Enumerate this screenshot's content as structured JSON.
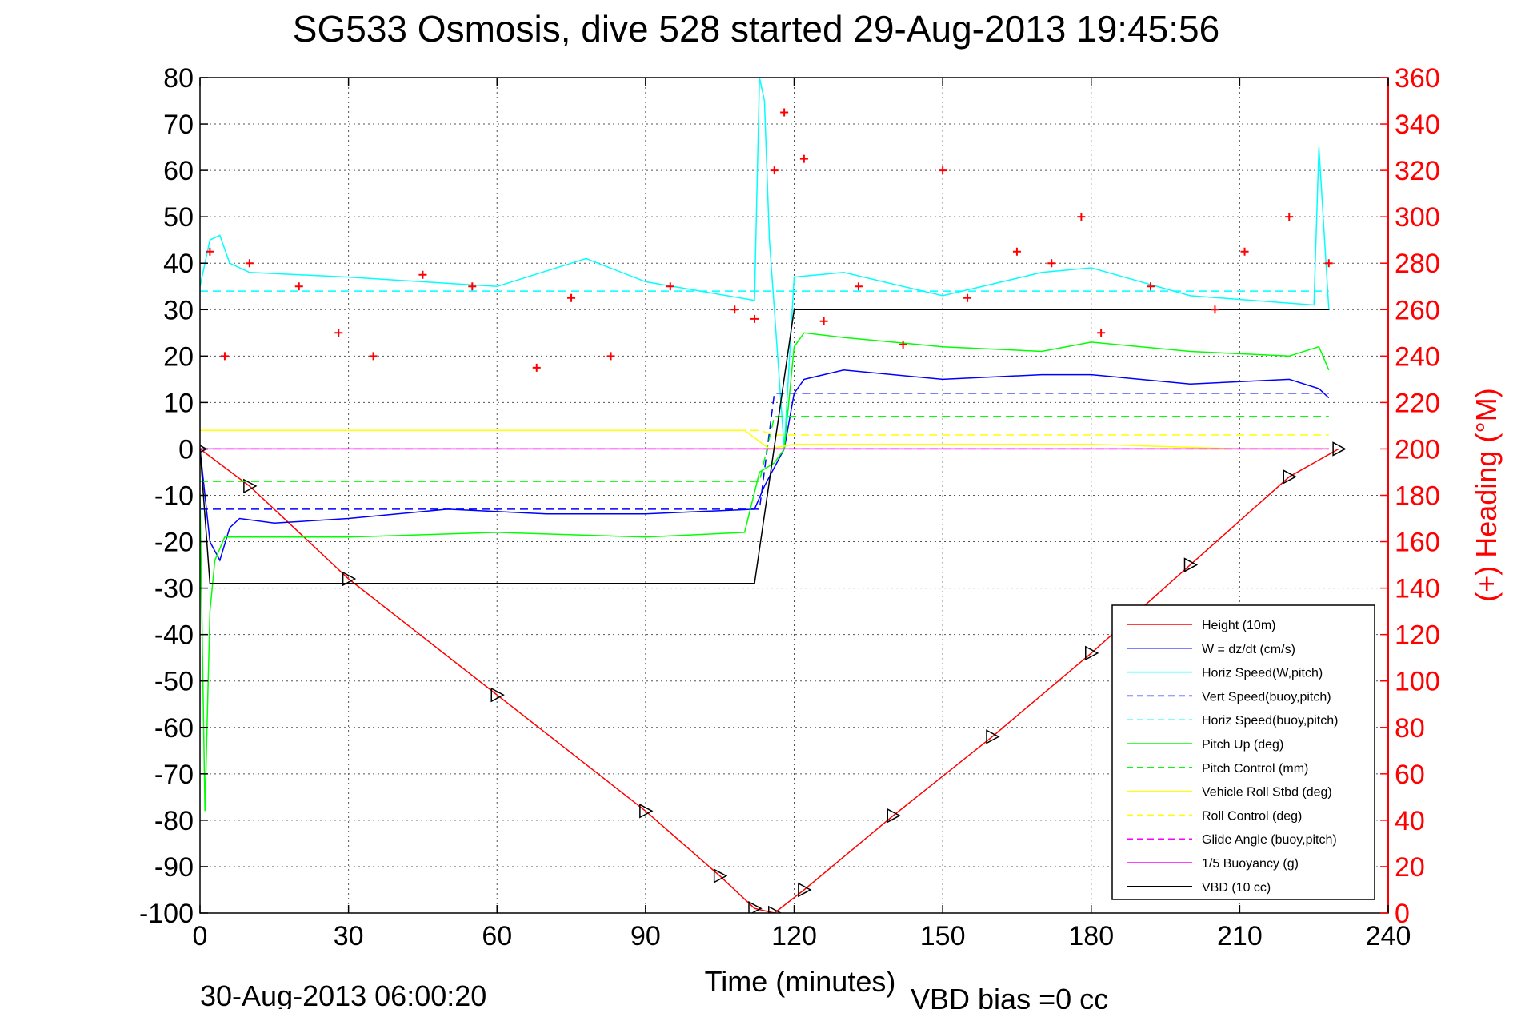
{
  "chart_data": {
    "type": "line",
    "title": "SG533 Osmosis, dive 528 started 29-Aug-2013 19:45:56",
    "xlabel": "Time (minutes)",
    "ylabel": "",
    "ylabel_right": "(+) Heading (°M)",
    "xlim": [
      0,
      240
    ],
    "ylim": [
      -100,
      80
    ],
    "ylim_right": [
      0,
      360
    ],
    "x_ticks": [
      "0",
      "30",
      "60",
      "90",
      "120",
      "150",
      "180",
      "210",
      "240"
    ],
    "y_ticks": [
      "80",
      "70",
      "60",
      "50",
      "40",
      "30",
      "20",
      "10",
      "0",
      "-10",
      "-20",
      "-30",
      "-40",
      "-50",
      "-60",
      "-70",
      "-80",
      "-90",
      "-100"
    ],
    "y_ticks_right": [
      "360",
      "340",
      "320",
      "300",
      "280",
      "260",
      "240",
      "220",
      "200",
      "180",
      "160",
      "140",
      "120",
      "100",
      "80",
      "60",
      "40",
      "20",
      "0"
    ],
    "grid": true,
    "legend_position": "bottom-right",
    "footer_left": "30-Aug-2013 06:00:20",
    "footer_right": "VBD bias =0 cc",
    "series": [
      {
        "name": "Height (10m)",
        "color": "#ff0000",
        "style": "solid",
        "markers": "triangle",
        "x": [
          0,
          10,
          30,
          60,
          90,
          105,
          112,
          116,
          122,
          140,
          160,
          180,
          200,
          220,
          230
        ],
        "y": [
          0,
          -8,
          -28,
          -53,
          -78,
          -92,
          -99,
          -100,
          -95,
          -79,
          -62,
          -44,
          -25,
          -6,
          0
        ]
      },
      {
        "name": "W = dz/dt (cm/s)",
        "color": "#0000ff",
        "style": "solid",
        "x": [
          0,
          2,
          4,
          6,
          8,
          15,
          30,
          50,
          70,
          90,
          112,
          114,
          118,
          120,
          122,
          130,
          150,
          170,
          180,
          200,
          220,
          226,
          228
        ],
        "y": [
          0,
          -20,
          -24,
          -17,
          -15,
          -16,
          -15,
          -13,
          -14,
          -14,
          -13,
          -8,
          0,
          12,
          15,
          17,
          15,
          16,
          16,
          14,
          15,
          13,
          11
        ]
      },
      {
        "name": "Horiz Speed(W,pitch)",
        "color": "#00ffff",
        "style": "solid",
        "x": [
          0,
          2,
          4,
          6,
          10,
          30,
          60,
          78,
          90,
          112,
          113,
          114,
          115,
          116,
          118,
          120,
          130,
          150,
          170,
          180,
          200,
          225,
          226,
          228
        ],
        "y": [
          35,
          45,
          46,
          40,
          38,
          37,
          35,
          41,
          36,
          32,
          80,
          75,
          45,
          30,
          0,
          37,
          38,
          33,
          38,
          39,
          33,
          31,
          65,
          30
        ]
      },
      {
        "name": "Vert Speed(buoy,pitch)",
        "color": "#0000ff",
        "style": "dashed",
        "x": [
          0,
          113,
          116,
          228
        ],
        "y": [
          -13,
          -13,
          12,
          12
        ]
      },
      {
        "name": "Horiz Speed(buoy,pitch)",
        "color": "#00ffff",
        "style": "dashed",
        "x": [
          0,
          228
        ],
        "y": [
          34,
          34
        ]
      },
      {
        "name": "Pitch Up (deg)",
        "color": "#00ff00",
        "style": "solid",
        "x": [
          0,
          1,
          2,
          3,
          5,
          10,
          30,
          60,
          90,
          110,
          113,
          116,
          118,
          120,
          122,
          130,
          150,
          170,
          180,
          200,
          220,
          226,
          228
        ],
        "y": [
          -10,
          -78,
          -35,
          -24,
          -19,
          -19,
          -19,
          -18,
          -19,
          -18,
          -5,
          -3,
          0,
          22,
          25,
          24,
          22,
          21,
          23,
          21,
          20,
          22,
          17
        ]
      },
      {
        "name": "Pitch Control (mm)",
        "color": "#00ff00",
        "style": "dashed",
        "x": [
          0,
          113,
          116,
          228
        ],
        "y": [
          -7,
          -7,
          7,
          7
        ]
      },
      {
        "name": "Vehicle Roll Stbd (deg)",
        "color": "#ffff00",
        "style": "solid",
        "x": [
          0,
          30,
          60,
          90,
          110,
          115,
          120,
          150,
          180,
          210,
          228
        ],
        "y": [
          4,
          4,
          4,
          4,
          4,
          0,
          1,
          1,
          1,
          0,
          0
        ]
      },
      {
        "name": "Roll Control (deg)",
        "color": "#ffff00",
        "style": "dashed",
        "x": [
          0,
          113,
          116,
          228
        ],
        "y": [
          4,
          4,
          3,
          3
        ]
      },
      {
        "name": "Glide Angle (buoy,pitch)",
        "color": "#ff00ff",
        "style": "dashed",
        "x": [
          0,
          228
        ],
        "y": [
          0,
          0
        ]
      },
      {
        "name": "1/5 Buoyancy (g)",
        "color": "#ff00ff",
        "style": "solid",
        "x": [
          0,
          228
        ],
        "y": [
          0,
          0
        ]
      },
      {
        "name": "VBD (10 cc)",
        "color": "#000000",
        "style": "solid",
        "x": [
          0,
          2,
          112,
          120,
          228
        ],
        "y": [
          0,
          -29,
          -29,
          30,
          30
        ]
      },
      {
        "name": "Heading",
        "color": "#ff0000",
        "style": "markers",
        "axis": "right",
        "x": [
          2,
          5,
          10,
          20,
          28,
          35,
          45,
          55,
          68,
          75,
          83,
          95,
          108,
          112,
          116,
          118,
          122,
          126,
          133,
          142,
          150,
          155,
          165,
          172,
          178,
          182,
          192,
          205,
          211,
          220,
          228
        ],
        "y": [
          285,
          240,
          280,
          270,
          250,
          240,
          275,
          270,
          235,
          265,
          240,
          270,
          260,
          256,
          320,
          345,
          325,
          255,
          270,
          245,
          320,
          265,
          285,
          280,
          300,
          250,
          270,
          260,
          285,
          300,
          280
        ]
      }
    ]
  }
}
